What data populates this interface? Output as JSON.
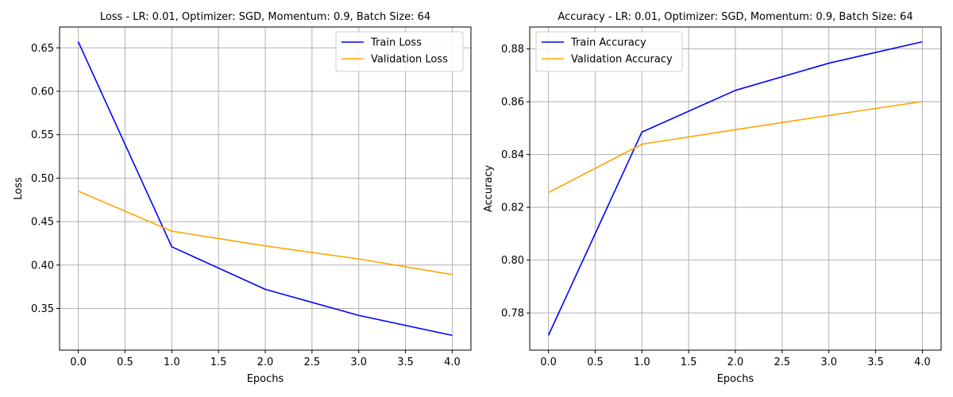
{
  "chart_data": [
    {
      "type": "line",
      "title": "Loss - LR: 0.01, Optimizer: SGD, Momentum: 0.9, Batch Size: 64",
      "xlabel": "Epochs",
      "ylabel": "Loss",
      "xlim": [
        -0.2,
        4.2
      ],
      "ylim": [
        0.302,
        0.674
      ],
      "xticks": [
        0.0,
        0.5,
        1.0,
        1.5,
        2.0,
        2.5,
        3.0,
        3.5,
        4.0
      ],
      "xtick_labels": [
        "0.0",
        "0.5",
        "1.0",
        "1.5",
        "2.0",
        "2.5",
        "3.0",
        "3.5",
        "4.0"
      ],
      "yticks": [
        0.35,
        0.4,
        0.45,
        0.5,
        0.55,
        0.6,
        0.65
      ],
      "ytick_labels": [
        "0.35",
        "0.40",
        "0.45",
        "0.50",
        "0.55",
        "0.60",
        "0.65"
      ],
      "grid": true,
      "legend_position": "top-right",
      "x": [
        0,
        1,
        2,
        3,
        4
      ],
      "series": [
        {
          "name": "Train Loss",
          "color": "#0000ff",
          "values": [
            0.657,
            0.421,
            0.372,
            0.342,
            0.319
          ]
        },
        {
          "name": "Validation Loss",
          "color": "#ffa500",
          "values": [
            0.485,
            0.439,
            0.422,
            0.407,
            0.389
          ]
        }
      ]
    },
    {
      "type": "line",
      "title": "Accuracy - LR: 0.01, Optimizer: SGD, Momentum: 0.9, Batch Size: 64",
      "xlabel": "Epochs",
      "ylabel": "Accuracy",
      "xlim": [
        -0.2,
        4.2
      ],
      "ylim": [
        0.7659,
        0.8883
      ],
      "xticks": [
        0.0,
        0.5,
        1.0,
        1.5,
        2.0,
        2.5,
        3.0,
        3.5,
        4.0
      ],
      "xtick_labels": [
        "0.0",
        "0.5",
        "1.0",
        "1.5",
        "2.0",
        "2.5",
        "3.0",
        "3.5",
        "4.0"
      ],
      "yticks": [
        0.78,
        0.8,
        0.82,
        0.84,
        0.86,
        0.88
      ],
      "ytick_labels": [
        "0.78",
        "0.80",
        "0.82",
        "0.84",
        "0.86",
        "0.88"
      ],
      "grid": true,
      "legend_position": "top-left",
      "x": [
        0,
        1,
        2,
        3,
        4
      ],
      "series": [
        {
          "name": "Train Accuracy",
          "color": "#0000ff",
          "values": [
            0.7715,
            0.8485,
            0.8643,
            0.8746,
            0.8827
          ]
        },
        {
          "name": "Validation Accuracy",
          "color": "#ffa500",
          "values": [
            0.8256,
            0.8439,
            0.8494,
            0.8548,
            0.8601
          ]
        }
      ]
    }
  ]
}
